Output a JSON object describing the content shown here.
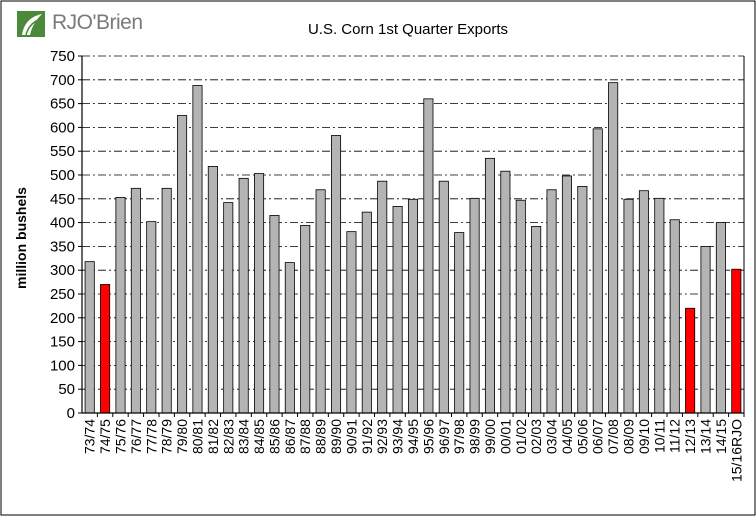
{
  "logo": {
    "text": "RJO'Brien",
    "icon": "rjo-leaf-logo-icon",
    "color": "#4a8a3a"
  },
  "chart_data": {
    "type": "bar",
    "title": "U.S. Corn 1st Quarter Exports",
    "xlabel": "",
    "ylabel": "million  bushels",
    "ylim": [
      0,
      750
    ],
    "ytick_step": 50,
    "grid": true,
    "legend": "none",
    "colors": {
      "default": "#b4b4b4",
      "highlight": "#ff0000",
      "edge": "#000000",
      "grid": "#000000"
    },
    "categories": [
      "73/74",
      "74/75",
      "75/76",
      "76/77",
      "77/78",
      "78/79",
      "79/80",
      "80/81",
      "81/82",
      "82/83",
      "83/84",
      "84/85",
      "85/86",
      "86/87",
      "87/88",
      "88/89",
      "89/90",
      "90/91",
      "91/92",
      "92/93",
      "93/94",
      "94/95",
      "95/96",
      "96/97",
      "97/98",
      "98/99",
      "99/00",
      "00/01",
      "01/02",
      "02/03",
      "03/04",
      "04/05",
      "05/06",
      "06/07",
      "07/08",
      "08/09",
      "09/10",
      "10/11",
      "11/12",
      "12/13",
      "13/14",
      "14/15",
      "15/16RJO"
    ],
    "values": [
      318,
      270,
      453,
      472,
      402,
      472,
      625,
      688,
      518,
      442,
      493,
      503,
      415,
      316,
      394,
      469,
      583,
      381,
      422,
      487,
      434,
      449,
      660,
      487,
      379,
      451,
      535,
      508,
      447,
      392,
      469,
      498,
      476,
      597,
      694,
      449,
      467,
      451,
      406,
      220,
      350,
      400,
      302
    ],
    "highlight": [
      "74/75",
      "12/13",
      "15/16RJO"
    ]
  }
}
